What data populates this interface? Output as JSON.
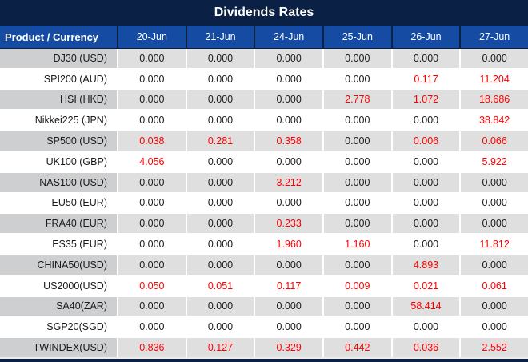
{
  "title": "Dividends Rates",
  "colors": {
    "title_bar": "#0A2145",
    "header_row": "#164BA3",
    "gray_row_label": "#CDCFD1",
    "gray_row_cell": "#DFDFDF",
    "white_row": "#FFFFFF",
    "value_red": "#FE0000",
    "value_black": "#1A1A1A",
    "header_text": "#FFFFFF"
  },
  "table": {
    "product_header": "Product / Currency",
    "date_columns": [
      "20-Jun",
      "21-Jun",
      "24-Jun",
      "25-Jun",
      "26-Jun",
      "27-Jun"
    ],
    "zero_value": "0.000",
    "rows": [
      {
        "product": "DJ30 (USD)",
        "values": [
          "0.000",
          "0.000",
          "0.000",
          "0.000",
          "0.000",
          "0.000"
        ]
      },
      {
        "product": "SPI200 (AUD)",
        "values": [
          "0.000",
          "0.000",
          "0.000",
          "0.000",
          "0.117",
          "11.204"
        ]
      },
      {
        "product": "HSI (HKD)",
        "values": [
          "0.000",
          "0.000",
          "0.000",
          "2.778",
          "1.072",
          "18.686"
        ]
      },
      {
        "product": "Nikkei225 (JPN)",
        "values": [
          "0.000",
          "0.000",
          "0.000",
          "0.000",
          "0.000",
          "38.842"
        ]
      },
      {
        "product": "SP500 (USD)",
        "values": [
          "0.038",
          "0.281",
          "0.358",
          "0.000",
          "0.006",
          "0.066"
        ]
      },
      {
        "product": "UK100 (GBP)",
        "values": [
          "4.056",
          "0.000",
          "0.000",
          "0.000",
          "0.000",
          "5.922"
        ]
      },
      {
        "product": "NAS100 (USD)",
        "values": [
          "0.000",
          "0.000",
          "3.212",
          "0.000",
          "0.000",
          "0.000"
        ]
      },
      {
        "product": "EU50 (EUR)",
        "values": [
          "0.000",
          "0.000",
          "0.000",
          "0.000",
          "0.000",
          "0.000"
        ]
      },
      {
        "product": "FRA40 (EUR)",
        "values": [
          "0.000",
          "0.000",
          "0.233",
          "0.000",
          "0.000",
          "0.000"
        ]
      },
      {
        "product": "ES35 (EUR)",
        "values": [
          "0.000",
          "0.000",
          "1.960",
          "1.160",
          "0.000",
          "11.812"
        ]
      },
      {
        "product": "CHINA50(USD)",
        "values": [
          "0.000",
          "0.000",
          "0.000",
          "0.000",
          "4.893",
          "0.000"
        ]
      },
      {
        "product": "US2000(USD)",
        "values": [
          "0.050",
          "0.051",
          "0.117",
          "0.009",
          "0.021",
          "0.061"
        ]
      },
      {
        "product": "SA40(ZAR)",
        "values": [
          "0.000",
          "0.000",
          "0.000",
          "0.000",
          "58.414",
          "0.000"
        ]
      },
      {
        "product": "SGP20(SGD)",
        "values": [
          "0.000",
          "0.000",
          "0.000",
          "0.000",
          "0.000",
          "0.000"
        ]
      },
      {
        "product": "TWINDEX(USD)",
        "values": [
          "0.836",
          "0.127",
          "0.329",
          "0.442",
          "0.036",
          "2.552"
        ]
      }
    ]
  }
}
